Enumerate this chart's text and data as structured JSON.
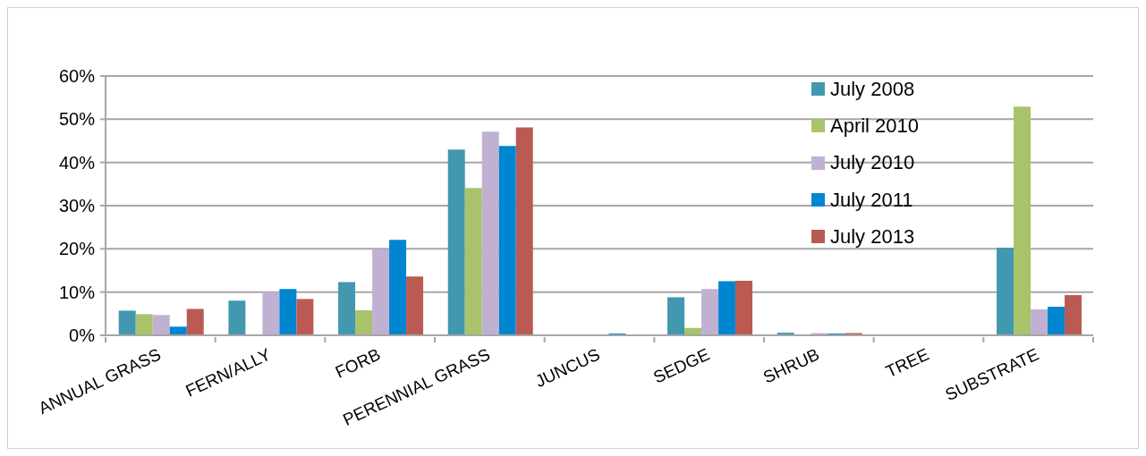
{
  "chart_data": {
    "type": "bar",
    "categories": [
      "ANNUAL GRASS",
      "FERN/ALLY",
      "FORB",
      "PERENNIAL GRASS",
      "JUNCUS",
      "SEDGE",
      "SHRUB",
      "TREE",
      "SUBSTRATE"
    ],
    "series": [
      {
        "name": "July 2008",
        "color": "#4198af",
        "values": [
          5.7,
          8.0,
          12.3,
          43.0,
          0,
          8.8,
          0.6,
          0,
          20.3
        ]
      },
      {
        "name": "April 2010",
        "color": "#a8c36a",
        "values": [
          4.9,
          0,
          5.8,
          34.1,
          0,
          1.7,
          0,
          0,
          52.9
        ]
      },
      {
        "name": "July 2010",
        "color": "#c0b1d3",
        "values": [
          4.7,
          10.0,
          19.9,
          47.1,
          0,
          10.7,
          0.5,
          0,
          6.0
        ]
      },
      {
        "name": "July 2011",
        "color": "#0086d1",
        "values": [
          2.0,
          10.7,
          22.1,
          43.8,
          0.4,
          12.5,
          0.4,
          0,
          6.6
        ]
      },
      {
        "name": "July 2013",
        "color": "#ba5a53",
        "values": [
          6.1,
          8.4,
          13.6,
          48.1,
          0,
          12.6,
          0.5,
          0,
          9.3
        ]
      }
    ],
    "ylim": [
      0,
      60
    ],
    "yticks": [
      {
        "value": 0,
        "label": "0%"
      },
      {
        "value": 10,
        "label": "10%"
      },
      {
        "value": 20,
        "label": "20%"
      },
      {
        "value": 30,
        "label": "30%"
      },
      {
        "value": 40,
        "label": "40%"
      },
      {
        "value": 50,
        "label": "50%"
      },
      {
        "value": 60,
        "label": "60%"
      }
    ],
    "grid": "y",
    "legend": "top right"
  }
}
